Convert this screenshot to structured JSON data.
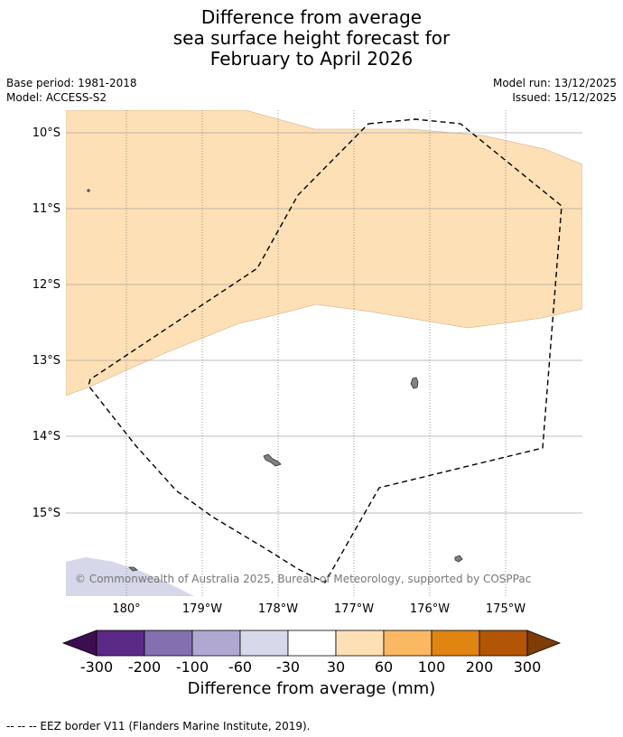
{
  "title": {
    "line1": "Difference from average",
    "line2": "sea surface height forecast for",
    "line3": "February to April 2026"
  },
  "meta": {
    "base_period": "Base period: 1981-2018",
    "model": "Model: ACCESS-S2",
    "model_run": "Model run: 13/12/2025",
    "issued": "Issued: 15/12/2025"
  },
  "map": {
    "copyright": "© Commonwealth of Australia 2025, Bureau of Meteorology, supported by COSPPac",
    "lat_labels": [
      "10°S",
      "11°S",
      "12°S",
      "13°S",
      "14°S",
      "15°S"
    ],
    "lon_labels": [
      "180°",
      "179°W",
      "178°W",
      "177°W",
      "176°W",
      "175°W"
    ],
    "colors": {
      "light_orange": "#fde0b5",
      "light_purple": "#d6d7e9",
      "land": "#808080",
      "grid": "#b0b0b0"
    }
  },
  "colorbar": {
    "title": "Difference from average (mm)",
    "ticks": [
      "-300",
      "-200",
      "-100",
      "-60",
      "-30",
      "30",
      "60",
      "100",
      "200",
      "300"
    ],
    "colors": {
      "under": "#3b0f4f",
      "bins": [
        "#5b2a86",
        "#8270b0",
        "#b1a8d2",
        "#d7d8ea",
        "#ffffff",
        "#fde0b5",
        "#fbb863",
        "#e08412",
        "#b25505"
      ],
      "over": "#7f3b08"
    }
  },
  "footnote": "--  --  -- EEZ border V11 (Flanders Marine Institute, 2019)."
}
